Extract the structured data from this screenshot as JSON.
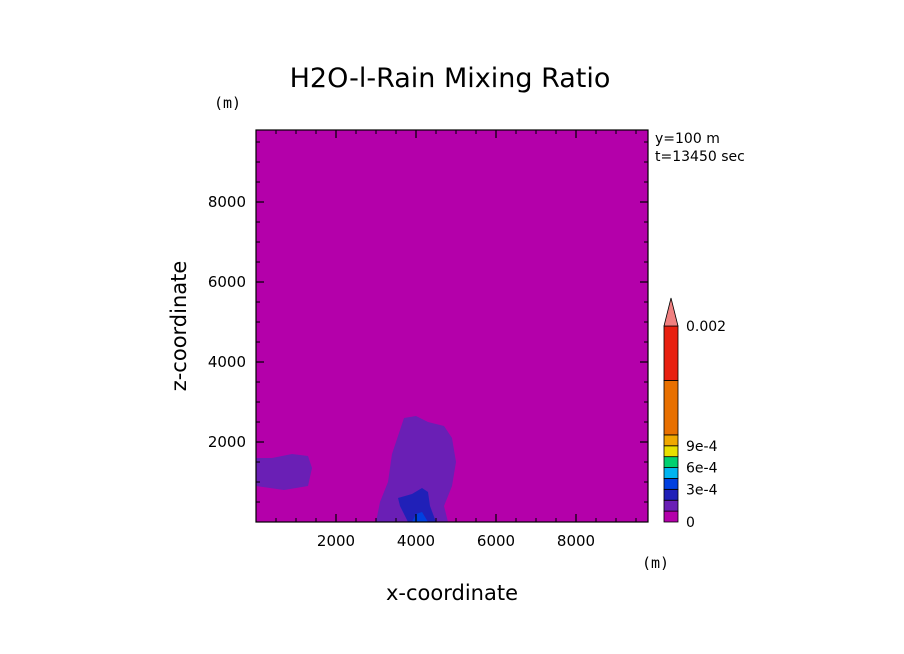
{
  "chart_data": {
    "type": "heatmap",
    "title": "H2O-l-Rain Mixing Ratio",
    "xlabel": "x-coordinate",
    "ylabel": "z-coordinate",
    "x_unit": "(m)",
    "y_unit": "(m)",
    "xlim": [
      0,
      9800
    ],
    "ylim": [
      0,
      9800
    ],
    "x_ticks": [
      2000,
      4000,
      6000,
      8000
    ],
    "y_ticks": [
      2000,
      4000,
      6000,
      8000
    ],
    "x_tick_labels": [
      "2000",
      "4000",
      "6000",
      "8000"
    ],
    "y_tick_labels": [
      "2000",
      "4000",
      "6000",
      "8000"
    ],
    "info_lines": [
      "y=100 m",
      "t=13450 sec"
    ],
    "background_color": "#b400aa",
    "colorbar": {
      "levels": [
        {
          "color": "#b400aa"
        },
        {
          "color": "#6a1fb5"
        },
        {
          "color": "#2020b8"
        },
        {
          "color": "#0040e0"
        },
        {
          "color": "#00b4f0"
        },
        {
          "color": "#00d070"
        },
        {
          "color": "#e8e000"
        },
        {
          "color": "#f0a800"
        },
        {
          "color": "#e87000"
        },
        {
          "color": "#e82010"
        },
        {
          "color": "#f08080"
        }
      ],
      "segment_weights": [
        1,
        1,
        1,
        1,
        1,
        1,
        1,
        1,
        5,
        5
      ],
      "labels": [
        {
          "text": "0",
          "at_boundary": 0
        },
        {
          "text": "3e-4",
          "at_boundary": 3
        },
        {
          "text": "6e-4",
          "at_boundary": 5
        },
        {
          "text": "9e-4",
          "at_boundary": 7
        },
        {
          "text": "0.002",
          "at_boundary": 10
        }
      ],
      "extend": "max"
    },
    "regions": [
      {
        "name": "rain-region-left",
        "level": 1,
        "points": [
          [
            0,
            1600
          ],
          [
            400,
            1600
          ],
          [
            900,
            1700
          ],
          [
            1300,
            1650
          ],
          [
            1400,
            1350
          ],
          [
            1300,
            900
          ],
          [
            700,
            800
          ],
          [
            0,
            900
          ]
        ]
      },
      {
        "name": "rain-region-main",
        "level": 1,
        "points": [
          [
            3000,
            0
          ],
          [
            3100,
            500
          ],
          [
            3300,
            1000
          ],
          [
            3400,
            1700
          ],
          [
            3600,
            2300
          ],
          [
            3700,
            2600
          ],
          [
            4000,
            2650
          ],
          [
            4300,
            2500
          ],
          [
            4700,
            2400
          ],
          [
            4900,
            2100
          ],
          [
            5000,
            1500
          ],
          [
            4900,
            900
          ],
          [
            4700,
            400
          ],
          [
            4800,
            0
          ]
        ]
      },
      {
        "name": "rain-region-core",
        "level": 2,
        "points": [
          [
            3800,
            0
          ],
          [
            3600,
            400
          ],
          [
            3550,
            600
          ],
          [
            3900,
            700
          ],
          [
            4150,
            850
          ],
          [
            4300,
            750
          ],
          [
            4350,
            400
          ],
          [
            4500,
            0
          ]
        ]
      },
      {
        "name": "rain-region-core-edge",
        "level": 3,
        "points": [
          [
            3900,
            0
          ],
          [
            4000,
            200
          ],
          [
            4150,
            250
          ],
          [
            4300,
            0
          ]
        ]
      }
    ]
  }
}
